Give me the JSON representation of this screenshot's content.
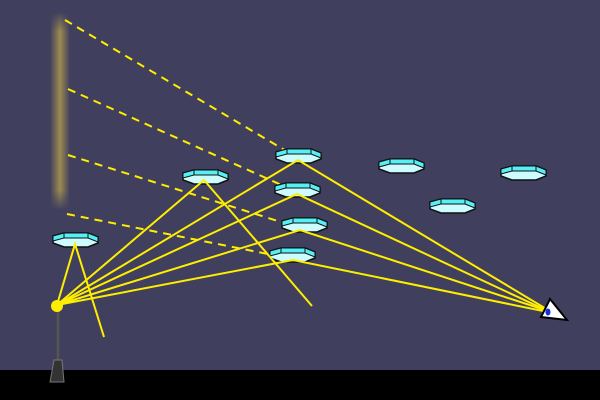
{
  "colors": {
    "sky": "#40405e",
    "ground": "#000000",
    "ray": "#ffee00",
    "crystal_face": "#55f0f5",
    "crystal_base": "#ccfcff",
    "pillar_glow": "#a89450"
  },
  "icons": {
    "light_source": "street-lamp-icon",
    "observer": "eye-icon",
    "crystal": "hexagonal-plate-ice-crystal-icon"
  }
}
